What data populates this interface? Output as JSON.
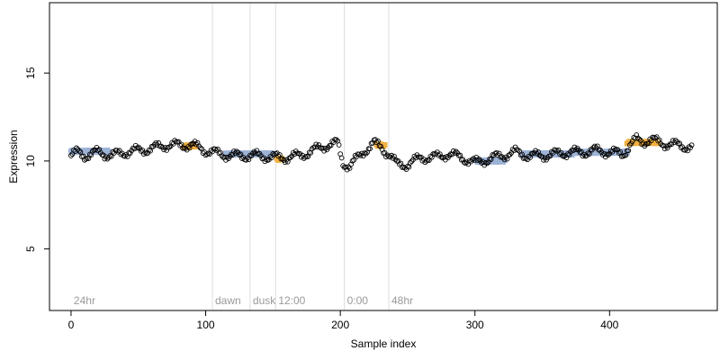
{
  "chart_data": {
    "type": "scatter",
    "xlabel": "Sample index",
    "ylabel": "Expression",
    "xlim": [
      -16,
      480
    ],
    "ylim": [
      1.5,
      19
    ],
    "xticks": [
      "0",
      "100",
      "200",
      "300",
      "400"
    ],
    "yticks": [
      "5",
      "10",
      "15"
    ],
    "grid": false,
    "legend": "none",
    "n_points": 462,
    "regions": [
      {
        "label": "24hr",
        "x_start": 0,
        "x_end": 105
      },
      {
        "label": "dawn",
        "x_start": 105,
        "x_end": 133
      },
      {
        "label": "dusk",
        "x_start": 133,
        "x_end": 152
      },
      {
        "label": "12:00",
        "x_start": 152,
        "x_end": 203
      },
      {
        "label": "0:00",
        "x_start": 203,
        "x_end": 236
      },
      {
        "label": "48hr",
        "x_start": 236,
        "x_end": 462
      }
    ],
    "series": [
      {
        "kind": "points",
        "marker": "open-circle",
        "color": "#000000",
        "profile": [
          [
            0,
            10.3
          ],
          [
            5,
            10.5
          ],
          [
            10,
            10.3
          ],
          [
            20,
            10.5
          ],
          [
            30,
            10.3
          ],
          [
            40,
            10.5
          ],
          [
            50,
            10.6
          ],
          [
            60,
            10.7
          ],
          [
            70,
            10.9
          ],
          [
            80,
            10.9
          ],
          [
            90,
            10.9
          ],
          [
            100,
            10.6
          ],
          [
            110,
            10.4
          ],
          [
            120,
            10.3
          ],
          [
            130,
            10.3
          ],
          [
            140,
            10.3
          ],
          [
            150,
            10.2
          ],
          [
            160,
            10.2
          ],
          [
            170,
            10.3
          ],
          [
            180,
            10.6
          ],
          [
            190,
            10.9
          ],
          [
            198,
            11.0
          ],
          [
            202,
            9.9
          ],
          [
            207,
            9.7
          ],
          [
            212,
            10.1
          ],
          [
            218,
            10.6
          ],
          [
            225,
            11.0
          ],
          [
            230,
            10.8
          ],
          [
            236,
            10.4
          ],
          [
            242,
            9.8
          ],
          [
            250,
            9.8
          ],
          [
            260,
            10.2
          ],
          [
            270,
            10.2
          ],
          [
            280,
            10.4
          ],
          [
            290,
            10.2
          ],
          [
            300,
            9.9
          ],
          [
            310,
            10.1
          ],
          [
            320,
            10.3
          ],
          [
            330,
            10.5
          ],
          [
            340,
            10.3
          ],
          [
            350,
            10.3
          ],
          [
            360,
            10.4
          ],
          [
            370,
            10.5
          ],
          [
            380,
            10.5
          ],
          [
            390,
            10.6
          ],
          [
            400,
            10.5
          ],
          [
            410,
            10.4
          ],
          [
            415,
            10.9
          ],
          [
            420,
            11.2
          ],
          [
            425,
            11.1
          ],
          [
            430,
            11.2
          ],
          [
            440,
            11.0
          ],
          [
            450,
            10.9
          ],
          [
            461,
            10.8
          ]
        ]
      },
      {
        "kind": "highlight-blue",
        "color": "#9db3d6",
        "segments": [
          {
            "x_start": 0,
            "x_end": 28,
            "y": 10.55
          },
          {
            "x_start": 115,
            "x_end": 150,
            "y": 10.4
          },
          {
            "x_start": 300,
            "x_end": 322,
            "y": 10.0
          },
          {
            "x_start": 335,
            "x_end": 372,
            "y": 10.4
          },
          {
            "x_start": 372,
            "x_end": 398,
            "y": 10.5
          },
          {
            "x_start": 398,
            "x_end": 413,
            "y": 10.5
          }
        ]
      },
      {
        "kind": "highlight-orange",
        "color": "#f0b040",
        "segments": [
          {
            "x_start": 84,
            "x_end": 92,
            "y": 10.85
          },
          {
            "x_start": 153,
            "x_end": 157,
            "y": 10.1
          },
          {
            "x_start": 227,
            "x_end": 233,
            "y": 10.9
          },
          {
            "x_start": 413,
            "x_end": 436,
            "y": 11.05
          }
        ]
      }
    ]
  }
}
